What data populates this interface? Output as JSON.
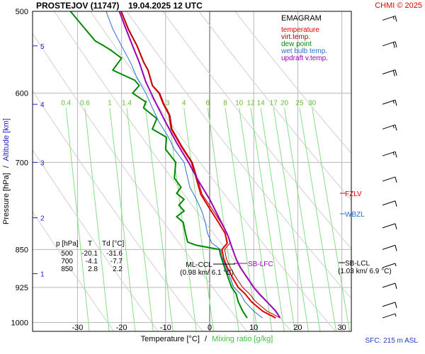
{
  "header": {
    "station": "PROSTEJOV (11747)",
    "datetime": "19.04.2025 12 UTC",
    "copyright": "CHMI © 2025"
  },
  "chart_data": {
    "type": "line",
    "title": "EMAGRAM",
    "xlabel_temp": "Temperature [°C]",
    "xlabel_sep": "/",
    "xlabel_mix": "Mixing ratio [g/kg]",
    "ylabel_pressure": "Pressure [hPa]",
    "ylabel_sep": "/",
    "ylabel_alt": "Altitude [km]",
    "xlim": [
      -38,
      34
    ],
    "ylim": [
      1020,
      500
    ],
    "yscale": "log",
    "x_ticks": [
      -30,
      -20,
      -10,
      0,
      10,
      20,
      30
    ],
    "pressure_ticks": [
      500,
      600,
      700,
      850,
      925,
      1000
    ],
    "altitude_ticks": [
      {
        "label": "5",
        "p": 540
      },
      {
        "label": "4",
        "p": 615
      },
      {
        "label": "3",
        "p": 700
      },
      {
        "label": "2",
        "p": 792
      },
      {
        "label": "1",
        "p": 897
      }
    ],
    "mixing_ratio_labels": [
      "0.4",
      "0.6",
      "1",
      "1.4",
      "2",
      "3",
      "4",
      "6",
      "8",
      "10",
      "12",
      "14",
      "17",
      "20",
      "25",
      "30"
    ],
    "legend": [
      {
        "name": "temperature",
        "color": "#e00000"
      },
      {
        "name": "virt.temp.",
        "color": "#aa0000"
      },
      {
        "name": "dew point",
        "color": "#008800"
      },
      {
        "name": "wet bulb temp.",
        "color": "#2a6fd0"
      },
      {
        "name": "updraft v.temp.",
        "color": "#9b00b4"
      }
    ],
    "series": [
      {
        "name": "temperature",
        "color": "#e00000",
        "points": [
          [
            15,
            990
          ],
          [
            12,
            975
          ],
          [
            9.5,
            955
          ],
          [
            8,
            938
          ],
          [
            6.5,
            925
          ],
          [
            5.2,
            905
          ],
          [
            4,
            885
          ],
          [
            3.2,
            868
          ],
          [
            2.8,
            850
          ],
          [
            4,
            838
          ],
          [
            3.5,
            820
          ],
          [
            2,
            800
          ],
          [
            0,
            776
          ],
          [
            -2,
            752
          ],
          [
            -4.1,
            700
          ],
          [
            -6.5,
            675
          ],
          [
            -8.7,
            650
          ],
          [
            -9.2,
            630
          ],
          [
            -10.5,
            615
          ],
          [
            -11.5,
            600
          ],
          [
            -13,
            590
          ],
          [
            -14,
            570
          ],
          [
            -15,
            560
          ],
          [
            -16.5,
            540
          ],
          [
            -18.5,
            520
          ],
          [
            -20.1,
            500
          ]
        ]
      },
      {
        "name": "virt.temp.",
        "color": "#aa0000",
        "points": [
          [
            16,
            990
          ],
          [
            13,
            975
          ],
          [
            10.5,
            955
          ],
          [
            9,
            938
          ],
          [
            7.5,
            925
          ],
          [
            6,
            905
          ],
          [
            4.7,
            885
          ],
          [
            3.8,
            868
          ],
          [
            3.4,
            850
          ],
          [
            4.6,
            838
          ],
          [
            4,
            820
          ],
          [
            2.5,
            800
          ],
          [
            0.5,
            776
          ],
          [
            -1.7,
            752
          ],
          [
            -3.9,
            700
          ],
          [
            -6.3,
            675
          ],
          [
            -8.5,
            650
          ],
          [
            -9,
            630
          ],
          [
            -10.3,
            615
          ],
          [
            -11.3,
            600
          ],
          [
            -12.9,
            590
          ],
          [
            -13.9,
            570
          ],
          [
            -14.9,
            560
          ],
          [
            -16.4,
            540
          ],
          [
            -18.4,
            520
          ],
          [
            -20,
            500
          ]
        ]
      },
      {
        "name": "dew point",
        "color": "#008800",
        "points": [
          [
            8.5,
            990
          ],
          [
            7.5,
            975
          ],
          [
            6.5,
            955
          ],
          [
            6,
            938
          ],
          [
            5,
            925
          ],
          [
            4.2,
            905
          ],
          [
            3.2,
            880
          ],
          [
            2.5,
            862
          ],
          [
            2.2,
            850
          ],
          [
            -3,
            842
          ],
          [
            -5,
            836
          ],
          [
            -5.5,
            820
          ],
          [
            -6,
            800
          ],
          [
            -7.5,
            790
          ],
          [
            -5.8,
            780
          ],
          [
            -7,
            770
          ],
          [
            -5.8,
            760
          ],
          [
            -7.5,
            750
          ],
          [
            -6.5,
            740
          ],
          [
            -8,
            725
          ],
          [
            -7.7,
            700
          ],
          [
            -10,
            680
          ],
          [
            -9.8,
            662
          ],
          [
            -13,
            650
          ],
          [
            -12,
            635
          ],
          [
            -14,
            625
          ],
          [
            -15,
            620
          ],
          [
            -14.5,
            612
          ],
          [
            -17.5,
            600
          ],
          [
            -16,
            590
          ],
          [
            -17,
            583
          ],
          [
            -22,
            570
          ],
          [
            -20,
            555
          ],
          [
            -22.5,
            545
          ],
          [
            -24,
            540
          ],
          [
            -26,
            534
          ],
          [
            -31.6,
            500
          ]
        ]
      },
      {
        "name": "wet bulb temp.",
        "color": "#2a6fd0",
        "points": [
          [
            12,
            990
          ],
          [
            10,
            975
          ],
          [
            8,
            955
          ],
          [
            7,
            938
          ],
          [
            5.5,
            925
          ],
          [
            4.6,
            905
          ],
          [
            3.5,
            880
          ],
          [
            2.7,
            862
          ],
          [
            2.5,
            850
          ],
          [
            0.5,
            838
          ],
          [
            -0.5,
            820
          ],
          [
            -1,
            800
          ],
          [
            -1.8,
            780
          ],
          [
            -3,
            760
          ],
          [
            -4.5,
            740
          ],
          [
            -5.8,
            700
          ],
          [
            -8,
            680
          ],
          [
            -9.5,
            660
          ],
          [
            -11.5,
            640
          ],
          [
            -13,
            620
          ],
          [
            -14.5,
            600
          ],
          [
            -16.5,
            580
          ],
          [
            -18,
            560
          ],
          [
            -20,
            540
          ],
          [
            -22,
            520
          ],
          [
            -23.5,
            500
          ]
        ]
      },
      {
        "name": "updraft v.temp.",
        "color": "#9b00b4",
        "points": [
          [
            16,
            990
          ],
          [
            15,
            975
          ],
          [
            13,
            955
          ],
          [
            11.2,
            938
          ],
          [
            10,
            925
          ],
          [
            8.5,
            905
          ],
          [
            7,
            885
          ],
          [
            6,
            868
          ],
          [
            5,
            845
          ],
          [
            4.2,
            825
          ],
          [
            3.3,
            810
          ],
          [
            2,
            790
          ],
          [
            0,
            760
          ],
          [
            -2.5,
            730
          ],
          [
            -4.8,
            700
          ],
          [
            -7.5,
            670
          ],
          [
            -10,
            640
          ],
          [
            -12.5,
            610
          ],
          [
            -14.5,
            585
          ],
          [
            -16,
            560
          ],
          [
            -17.5,
            540
          ],
          [
            -19,
            520
          ],
          [
            -20.5,
            500
          ]
        ]
      }
    ],
    "dry_adiabats_theta_K": [
      250,
      260,
      270,
      280,
      290,
      300,
      310,
      320,
      330,
      340
    ],
    "mixing_ratio_lines": [
      0.4,
      0.6,
      1,
      1.4,
      2,
      3,
      4,
      6,
      8,
      10,
      12,
      14,
      17,
      20,
      25,
      30
    ],
    "levels_table": {
      "headers": [
        "p [hPa]",
        "T",
        "Td [°C]"
      ],
      "rows": [
        [
          "500",
          "-20.1",
          "-31.6"
        ],
        [
          "700",
          "-4.1",
          "-7.7"
        ],
        [
          "850",
          "2.8",
          "2.2"
        ]
      ]
    },
    "annotations": {
      "fzlv": "FZLV",
      "wbzl": "WBZL",
      "sb_lfc": "SB-LFC",
      "ml_ccl": "ML-CCL",
      "ml_ccl_value": "(0.98 km/ 6.1 °C)",
      "sb_lcl": "SB-LCL",
      "sb_lcl_value": "(1.03 km/ 6.9 °C)"
    },
    "sfc": "SFC: 215 m ASL",
    "wind_barbs": [
      {
        "p": 510,
        "speed_kt": 15
      },
      {
        "p": 540,
        "speed_kt": 20
      },
      {
        "p": 575,
        "speed_kt": 20
      },
      {
        "p": 615,
        "speed_kt": 15
      },
      {
        "p": 650,
        "speed_kt": 15
      },
      {
        "p": 690,
        "speed_kt": 15
      },
      {
        "p": 730,
        "speed_kt": 10
      },
      {
        "p": 770,
        "speed_kt": 10
      },
      {
        "p": 810,
        "speed_kt": 10
      },
      {
        "p": 850,
        "speed_kt": 10
      },
      {
        "p": 885,
        "speed_kt": 5
      },
      {
        "p": 925,
        "speed_kt": 10
      },
      {
        "p": 965,
        "speed_kt": 10
      },
      {
        "p": 990,
        "speed_kt": 5
      }
    ]
  }
}
